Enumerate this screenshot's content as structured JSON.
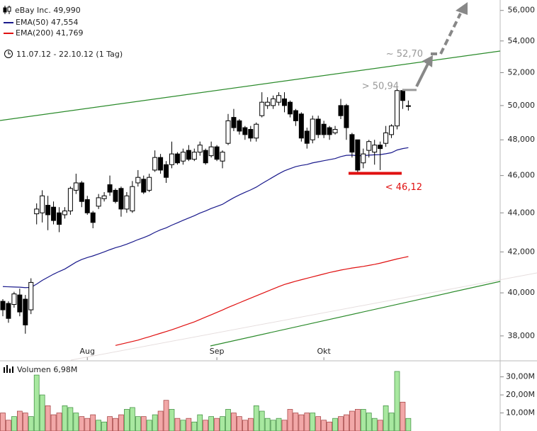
{
  "chart_data": {
    "type": "candlestick",
    "title": "eBay Inc. 49,990",
    "date_range": "11.07.12 - 22.10.12 (1 Tag)",
    "categories": [
      null,
      null,
      null,
      null,
      null,
      null,
      null,
      null,
      null,
      null,
      null,
      null,
      null,
      null,
      null,
      "Aug",
      null,
      null,
      null,
      null,
      null,
      null,
      null,
      null,
      null,
      null,
      null,
      null,
      null,
      null,
      null,
      null,
      null,
      null,
      null,
      null,
      null,
      null,
      "Sep",
      null,
      null,
      null,
      null,
      null,
      null,
      null,
      null,
      null,
      null,
      null,
      null,
      null,
      null,
      null,
      null,
      null,
      null,
      "Okt",
      null,
      null,
      null,
      null,
      null,
      null,
      null,
      null,
      null,
      null,
      null,
      null,
      null,
      null,
      null
    ],
    "open": [
      39.6,
      39.5,
      39.45,
      39.9,
      39.7,
      39.2,
      43.95,
      44,
      44.4,
      44.3,
      44,
      43.9,
      44.1,
      45.2,
      45.6,
      44.7,
      44.0,
      44.35,
      44.75,
      45.5,
      45.2,
      45.3,
      44.2,
      44.1,
      45.6,
      45.8,
      45.2,
      46.3,
      47.0,
      46.6,
      46.6,
      47.2,
      46.8,
      47.4,
      46.9,
      47.3,
      47.4,
      47.1,
      47.6,
      46.8,
      47.8,
      49.3,
      49.1,
      48.7,
      48.6,
      48.1,
      49.4,
      50.0,
      50.0,
      50.2,
      50.4,
      50.2,
      49.7,
      49.5,
      48.5,
      48.0,
      49.2,
      48.9,
      48.7,
      48.4,
      50.0,
      50.0,
      48.3,
      48.0,
      46.7,
      47.4,
      47.3,
      47.7,
      47.8,
      48.3,
      48.8,
      50.9,
      49.95
    ],
    "high": [
      39.7,
      39.6,
      40.05,
      40.2,
      39.9,
      40.7,
      44.5,
      45.2,
      44.9,
      44.6,
      44.3,
      44.3,
      45.4,
      46.1,
      45.7,
      44.9,
      44.1,
      45.0,
      45.1,
      46.0,
      45.3,
      45.4,
      45.1,
      45.7,
      46.3,
      46.0,
      46.1,
      47.4,
      47.2,
      46.8,
      47.9,
      47.3,
      47.5,
      47.7,
      47.5,
      47.9,
      47.5,
      47.9,
      47.7,
      47.4,
      49.5,
      49.8,
      49.2,
      48.8,
      48.8,
      49.0,
      50.8,
      50.5,
      50.6,
      50.8,
      50.8,
      50.3,
      49.8,
      49.6,
      48.7,
      49.4,
      49.4,
      49.1,
      48.8,
      48.8,
      50.4,
      50.1,
      48.4,
      48.0,
      47.5,
      48.0,
      48.0,
      47.9,
      48.8,
      48.9,
      51.1,
      51.0,
      50.3
    ],
    "low": [
      38.9,
      38.6,
      39.3,
      38.9,
      38.1,
      39.0,
      43.4,
      43.5,
      43.1,
      43.4,
      43.0,
      43.7,
      43.9,
      45.0,
      44.3,
      43.9,
      43.2,
      44.2,
      44.6,
      44.9,
      44.5,
      43.8,
      44.0,
      44.0,
      45.4,
      45.0,
      45.1,
      46.2,
      46.1,
      45.6,
      46.4,
      46.6,
      46.6,
      46.8,
      46.8,
      47.1,
      46.6,
      47.0,
      46.8,
      46.4,
      47.7,
      48.5,
      48.3,
      48.0,
      47.9,
      47.9,
      49.3,
      49.8,
      49.8,
      50.0,
      49.6,
      49.3,
      48.8,
      47.9,
      47.5,
      47.8,
      48.1,
      48.1,
      48.0,
      48.3,
      49.2,
      48.0,
      47.0,
      46.12,
      46.4,
      47.0,
      46.6,
      46.3,
      47.6,
      48.1,
      48.6,
      49.8,
      49.7
    ],
    "close": [
      39.2,
      38.8,
      39.95,
      39.1,
      38.5,
      40.5,
      44.2,
      44.9,
      43.9,
      43.6,
      43.4,
      44.1,
      45.3,
      45.6,
      44.6,
      44.0,
      43.5,
      44.8,
      44.9,
      45.1,
      44.6,
      44.2,
      44.9,
      45.4,
      45.9,
      45.1,
      45.9,
      47.0,
      46.3,
      45.9,
      47.2,
      46.7,
      47.3,
      46.9,
      47.3,
      47.7,
      46.7,
      47.6,
      46.9,
      47.3,
      49.1,
      48.7,
      48.5,
      48.3,
      48.1,
      48.9,
      50.2,
      50.2,
      50.4,
      50.6,
      50.0,
      49.5,
      49.1,
      48.1,
      47.8,
      49.2,
      48.3,
      48.3,
      48.3,
      48.6,
      49.4,
      48.7,
      47.3,
      46.3,
      47.2,
      47.9,
      47.7,
      47.5,
      48.4,
      48.8,
      50.9,
      50.3,
      49.99
    ],
    "up_color": "#ffffff",
    "down_color": "#000000",
    "log_scale": true,
    "ylim": [
      36.92,
      56.7
    ],
    "yticks": [
      {
        "value": 38,
        "label": "38,000"
      },
      {
        "value": 40,
        "label": "40,000"
      },
      {
        "value": 42,
        "label": "42,000"
      },
      {
        "value": 44,
        "label": "44,000"
      },
      {
        "value": 46,
        "label": "46,000"
      },
      {
        "value": 48,
        "label": "48,000"
      },
      {
        "value": 50,
        "label": "50,000"
      },
      {
        "value": 52,
        "label": "52,000"
      },
      {
        "value": 54,
        "label": "54,000"
      },
      {
        "value": 56,
        "label": "56,000"
      }
    ],
    "series": [
      {
        "name": "EMA(50) 47,554",
        "color": "#1a1a8c",
        "values": [
          40.3,
          40.29,
          40.28,
          40.27,
          40.25,
          40.26,
          40.42,
          40.6,
          40.75,
          40.9,
          41.03,
          41.15,
          41.32,
          41.49,
          41.62,
          41.72,
          41.8,
          41.9,
          42.0,
          42.11,
          42.21,
          42.29,
          42.39,
          42.5,
          42.62,
          42.72,
          42.84,
          42.99,
          43.12,
          43.22,
          43.36,
          43.48,
          43.61,
          43.73,
          43.85,
          43.99,
          44.1,
          44.23,
          44.34,
          44.45,
          44.63,
          44.8,
          44.95,
          45.09,
          45.22,
          45.37,
          45.56,
          45.74,
          45.92,
          46.1,
          46.26,
          46.38,
          46.49,
          46.56,
          46.61,
          46.7,
          46.76,
          46.82,
          46.88,
          46.94,
          47.05,
          47.12,
          47.13,
          47.1,
          47.1,
          47.13,
          47.15,
          47.16,
          47.21,
          47.27,
          47.42,
          47.5,
          47.554
        ]
      },
      {
        "name": "EMA(200) 41,769",
        "color": "#e01010",
        "values": [
          null,
          null,
          null,
          null,
          null,
          null,
          null,
          null,
          null,
          null,
          null,
          null,
          null,
          null,
          null,
          null,
          null,
          null,
          null,
          null,
          37.57,
          37.63,
          37.69,
          37.75,
          37.81,
          37.89,
          37.96,
          38.04,
          38.12,
          38.2,
          38.28,
          38.37,
          38.46,
          38.55,
          38.64,
          38.75,
          38.86,
          38.97,
          39.08,
          39.19,
          39.31,
          39.42,
          39.53,
          39.64,
          39.75,
          39.86,
          39.97,
          40.08,
          40.19,
          40.3,
          40.4,
          40.48,
          40.56,
          40.63,
          40.7,
          40.77,
          40.84,
          40.91,
          40.98,
          41.04,
          41.1,
          41.15,
          41.2,
          41.24,
          41.28,
          41.33,
          41.38,
          41.44,
          41.51,
          41.58,
          41.65,
          41.71,
          41.769
        ]
      }
    ],
    "annotations": [
      {
        "text": "< 46,12",
        "value": 46.12,
        "color": "#e01010"
      },
      {
        "text": "> 50,94",
        "value": 50.94,
        "color": "#999999"
      },
      {
        "text": "~ 52,70",
        "value": 52.7,
        "color": "#999999"
      }
    ],
    "volume": {
      "title": "Volumen 6,98M",
      "values": [
        10,
        6,
        8,
        11,
        10,
        8,
        31,
        20,
        14,
        9,
        10,
        14,
        13,
        10,
        8,
        7,
        9,
        6,
        5,
        8,
        7,
        9,
        12,
        13,
        8,
        8,
        6,
        9,
        11,
        17,
        12,
        7,
        6,
        7,
        5,
        9,
        6,
        8,
        7,
        8,
        12,
        10,
        8,
        6,
        7,
        14,
        11,
        7,
        6,
        7,
        6,
        12,
        10,
        9,
        10,
        10,
        8,
        6,
        5,
        7,
        8,
        9,
        11,
        12,
        12,
        10,
        7,
        6,
        14,
        10,
        33,
        16,
        6.98
      ],
      "ylim": [
        0,
        37.7
      ],
      "yticks": [
        {
          "value": 10,
          "label": "10,00M"
        },
        {
          "value": 20,
          "label": "20,00M"
        },
        {
          "value": 30,
          "label": "30,00M"
        }
      ],
      "up_color": "#a8e8a0",
      "down_color": "#f2a8a8"
    }
  }
}
